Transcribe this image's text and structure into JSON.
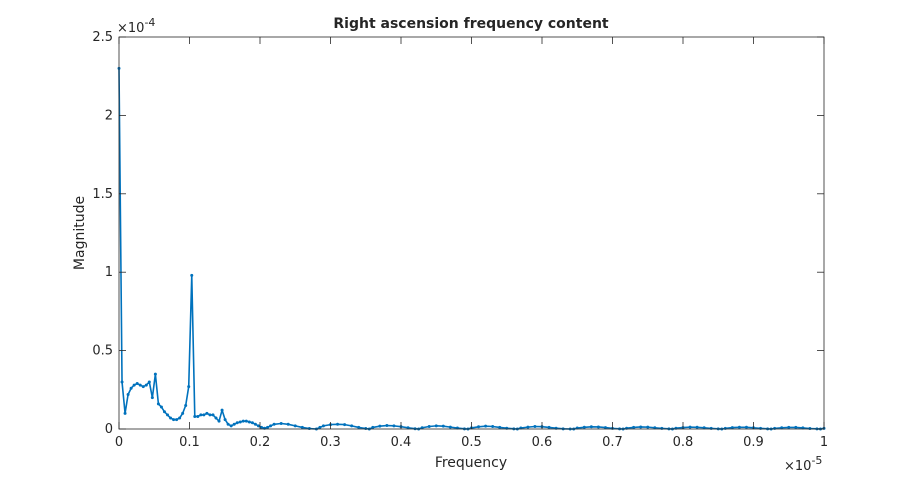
{
  "chart_data": {
    "type": "line",
    "title": "Right ascension frequency content",
    "xlabel": "Frequency",
    "ylabel": "Magnitude",
    "x_exponent_label": "×10",
    "x_exponent_power": "-5",
    "y_exponent_label": "×10",
    "y_exponent_power": "-4",
    "xlim": [
      0,
      1
    ],
    "ylim": [
      0,
      2.5
    ],
    "x_scale_factor": "1e-5",
    "y_scale_factor": "1e-4",
    "xticks": [
      "0",
      "0.1",
      "0.2",
      "0.3",
      "0.4",
      "0.5",
      "0.6",
      "0.7",
      "0.8",
      "0.9",
      "1"
    ],
    "yticks": [
      "0",
      "0.5",
      "1",
      "1.5",
      "2",
      "2.5"
    ],
    "grid": false,
    "legend": "none",
    "series_color": "#0072bd",
    "series": [
      {
        "x": [
          0,
          0.0043,
          0.0086,
          0.0129,
          0.0172,
          0.0215,
          0.0258,
          0.0301,
          0.0344,
          0.0387,
          0.043,
          0.0473,
          0.0516,
          0.0559,
          0.0602,
          0.0645,
          0.0688,
          0.0731,
          0.0774,
          0.0817,
          0.086,
          0.0903,
          0.0946,
          0.0989,
          0.1032,
          0.1075,
          0.1118,
          0.1161,
          0.1204,
          0.1247,
          0.129,
          0.1333,
          0.1376,
          0.1419,
          0.1462,
          0.1505,
          0.1548,
          0.1591,
          0.1634,
          0.1677,
          0.172,
          0.1763,
          0.1806,
          0.1849,
          0.1892,
          0.1935,
          0.1978,
          0.2021,
          0.2064,
          0.2107,
          0.215,
          0.22,
          0.23,
          0.24,
          0.25,
          0.26,
          0.27,
          0.28,
          0.285,
          0.29,
          0.3,
          0.31,
          0.32,
          0.33,
          0.34,
          0.35,
          0.355,
          0.36,
          0.37,
          0.38,
          0.39,
          0.4,
          0.41,
          0.42,
          0.425,
          0.43,
          0.44,
          0.45,
          0.46,
          0.47,
          0.48,
          0.49,
          0.495,
          0.5,
          0.51,
          0.52,
          0.53,
          0.54,
          0.55,
          0.56,
          0.565,
          0.57,
          0.58,
          0.59,
          0.6,
          0.61,
          0.62,
          0.63,
          0.64,
          0.645,
          0.65,
          0.66,
          0.67,
          0.68,
          0.69,
          0.7,
          0.71,
          0.715,
          0.72,
          0.73,
          0.74,
          0.75,
          0.76,
          0.77,
          0.78,
          0.785,
          0.79,
          0.8,
          0.81,
          0.82,
          0.83,
          0.84,
          0.85,
          0.855,
          0.86,
          0.87,
          0.88,
          0.89,
          0.9,
          0.91,
          0.92,
          0.925,
          0.93,
          0.94,
          0.95,
          0.96,
          0.97,
          0.98,
          0.99,
          0.995,
          1.0
        ],
        "y": [
          2.3,
          0.3,
          0.1,
          0.22,
          0.26,
          0.28,
          0.29,
          0.28,
          0.27,
          0.28,
          0.3,
          0.2,
          0.35,
          0.16,
          0.14,
          0.11,
          0.09,
          0.07,
          0.06,
          0.06,
          0.07,
          0.1,
          0.15,
          0.27,
          0.98,
          0.08,
          0.08,
          0.09,
          0.09,
          0.1,
          0.09,
          0.09,
          0.07,
          0.05,
          0.12,
          0.06,
          0.03,
          0.02,
          0.03,
          0.04,
          0.045,
          0.05,
          0.05,
          0.045,
          0.04,
          0.03,
          0.02,
          0.01,
          0.005,
          0.01,
          0.02,
          0.03,
          0.035,
          0.03,
          0.02,
          0.01,
          0.003,
          0.0,
          0.01,
          0.02,
          0.028,
          0.03,
          0.028,
          0.02,
          0.01,
          0.003,
          0.0,
          0.01,
          0.018,
          0.022,
          0.02,
          0.015,
          0.008,
          0.002,
          0.0,
          0.008,
          0.016,
          0.02,
          0.018,
          0.012,
          0.006,
          0.001,
          0.0,
          0.007,
          0.014,
          0.018,
          0.016,
          0.01,
          0.005,
          0.001,
          0.0,
          0.006,
          0.012,
          0.016,
          0.015,
          0.01,
          0.005,
          0.001,
          0.0,
          0.0,
          0.006,
          0.011,
          0.014,
          0.013,
          0.009,
          0.004,
          0.001,
          0.0,
          0.005,
          0.01,
          0.013,
          0.012,
          0.008,
          0.004,
          0.001,
          0.0,
          0.005,
          0.009,
          0.012,
          0.011,
          0.008,
          0.004,
          0.001,
          0.0,
          0.004,
          0.009,
          0.011,
          0.011,
          0.008,
          0.004,
          0.001,
          0.0,
          0.004,
          0.008,
          0.01,
          0.01,
          0.007,
          0.003,
          0.001,
          0.0,
          0.004
        ]
      }
    ]
  }
}
